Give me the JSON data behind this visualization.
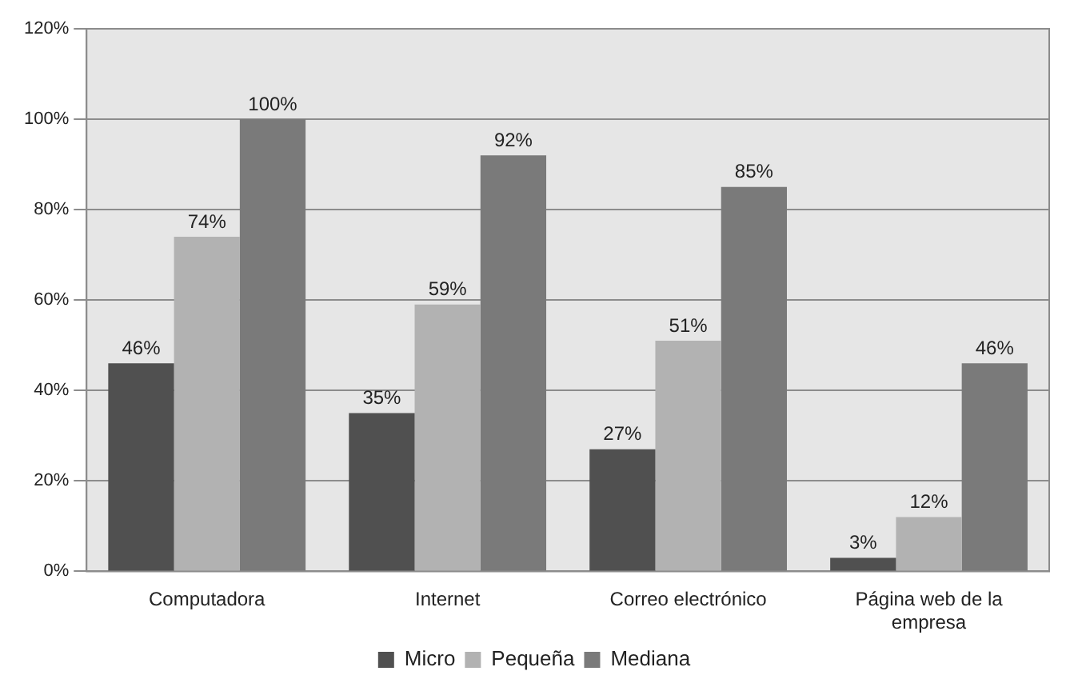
{
  "chart_data": {
    "type": "bar",
    "categories": [
      "Computadora",
      "Internet",
      "Correo electrónico",
      "Página web de la empresa"
    ],
    "series": [
      {
        "name": "Micro",
        "color": "#505050",
        "values": [
          46,
          35,
          27,
          3
        ],
        "value_labels": [
          "46%",
          "35%",
          "27%",
          "3%"
        ]
      },
      {
        "name": "Pequeña",
        "color": "#b2b2b2",
        "values": [
          74,
          59,
          51,
          12
        ],
        "value_labels": [
          "74%",
          "59%",
          "51%",
          "12%"
        ]
      },
      {
        "name": "Mediana",
        "color": "#7a7a7a",
        "values": [
          100,
          92,
          85,
          46
        ],
        "value_labels": [
          "100%",
          "92%",
          "85%",
          "46%"
        ]
      }
    ],
    "ylim": [
      0,
      120
    ],
    "yticks": [
      {
        "value": 0,
        "label": "0%"
      },
      {
        "value": 20,
        "label": "20%"
      },
      {
        "value": 40,
        "label": "40%"
      },
      {
        "value": 60,
        "label": "60%"
      },
      {
        "value": 80,
        "label": "80%"
      },
      {
        "value": 100,
        "label": "100%"
      },
      {
        "value": 120,
        "label": "120%"
      }
    ],
    "grid": "y",
    "legend": "bottom"
  }
}
